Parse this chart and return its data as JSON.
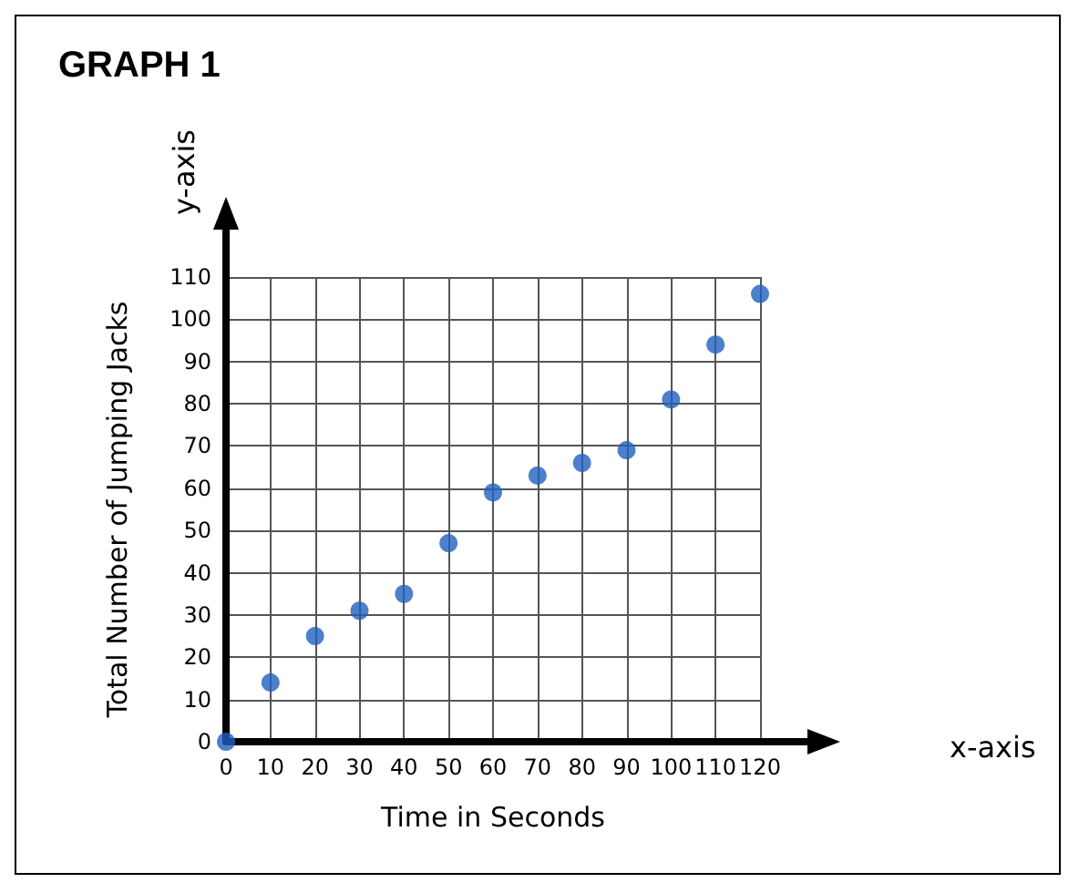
{
  "chart_data": {
    "type": "scatter",
    "title": "GRAPH 1",
    "xlabel": "Time in Seconds",
    "ylabel": "Total Number of Jumping Jacks",
    "annotations": [
      "y-axis",
      "x-axis"
    ],
    "x": [
      0,
      10,
      20,
      30,
      40,
      50,
      60,
      70,
      80,
      90,
      100,
      110,
      120
    ],
    "series": [
      {
        "color": "#1f5fbf",
        "values": [
          0,
          14,
          25,
          31,
          35,
          47,
          59,
          63,
          66,
          69,
          81,
          94,
          106
        ]
      }
    ],
    "xlim": [
      0,
      120
    ],
    "ylim": [
      0,
      110
    ],
    "xticks": [
      0,
      10,
      20,
      30,
      40,
      50,
      60,
      70,
      80,
      90,
      100,
      110,
      120
    ],
    "yticks": [
      0,
      10,
      20,
      30,
      40,
      50,
      60,
      70,
      80,
      90,
      100,
      110
    ],
    "grid": true,
    "marker": "circle"
  }
}
